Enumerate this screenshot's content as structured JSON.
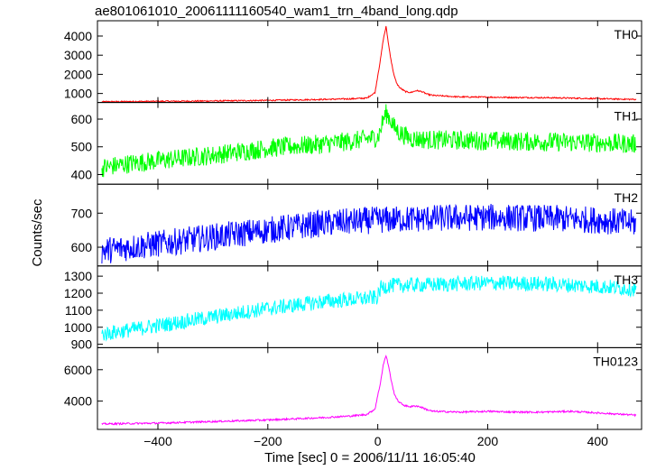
{
  "chart_data": {
    "type": "line",
    "title": "ae801061010_20061111160540_wam1_trn_4band_long.qdp",
    "xlabel": "Time [sec] 0 = 2006/11/11 16:05:40",
    "ylabel": "Counts/sec",
    "xlim": [
      -510,
      480
    ],
    "x_ticks": [
      -400,
      -200,
      0,
      200,
      400
    ],
    "panels": [
      {
        "name": "TH0",
        "color": "#ff0000",
        "ylim": [
          530,
          4800
        ],
        "y_ticks": [
          1000,
          2000,
          3000,
          4000
        ],
        "series": {
          "x": [
            -500,
            -400,
            -300,
            -200,
            -100,
            -50,
            -20,
            -5,
            5,
            10,
            15,
            20,
            25,
            30,
            35,
            40,
            50,
            60,
            70,
            80,
            90,
            100,
            150,
            200,
            250,
            300,
            350,
            400,
            450,
            470
          ],
          "y": [
            570,
            590,
            610,
            640,
            690,
            720,
            760,
            1050,
            2800,
            3800,
            4500,
            3500,
            2600,
            1900,
            1500,
            1300,
            1100,
            1050,
            1150,
            1100,
            960,
            900,
            820,
            810,
            790,
            780,
            760,
            730,
            700,
            690
          ],
          "noise": 35
        }
      },
      {
        "name": "TH1",
        "color": "#00ff00",
        "ylim": [
          365,
          660
        ],
        "y_ticks": [
          400,
          500,
          600
        ],
        "series": {
          "x": [
            -500,
            -450,
            -400,
            -300,
            -200,
            -100,
            -50,
            0,
            5,
            10,
            15,
            20,
            30,
            40,
            60,
            100,
            200,
            300,
            400,
            470
          ],
          "y": [
            425,
            440,
            450,
            470,
            495,
            510,
            520,
            535,
            560,
            600,
            620,
            610,
            570,
            550,
            530,
            525,
            522,
            518,
            515,
            510
          ],
          "noise": 35
        }
      },
      {
        "name": "TH2",
        "color": "#0000ff",
        "ylim": [
          545,
          785
        ],
        "y_ticks": [
          600,
          700
        ],
        "series": {
          "x": [
            -500,
            -450,
            -400,
            -300,
            -200,
            -100,
            0,
            100,
            200,
            300,
            400,
            470
          ],
          "y": [
            590,
            600,
            610,
            630,
            650,
            670,
            680,
            685,
            688,
            685,
            680,
            670
          ],
          "noise": 40
        }
      },
      {
        "name": "TH3",
        "color": "#00ffff",
        "ylim": [
          880,
          1360
        ],
        "y_ticks": [
          900,
          1000,
          1100,
          1200,
          1300
        ],
        "series": {
          "x": [
            -500,
            -450,
            -400,
            -300,
            -200,
            -100,
            0,
            5,
            20,
            100,
            200,
            300,
            400,
            470
          ],
          "y": [
            960,
            985,
            1010,
            1060,
            1110,
            1150,
            1175,
            1230,
            1245,
            1250,
            1260,
            1255,
            1240,
            1225
          ],
          "noise": 45
        }
      },
      {
        "name": "TH0123",
        "color": "#ff00ff",
        "ylim": [
          2200,
          7400
        ],
        "y_ticks": [
          4000,
          6000
        ],
        "series": {
          "x": [
            -500,
            -400,
            -300,
            -200,
            -100,
            -50,
            -20,
            -5,
            5,
            10,
            15,
            20,
            25,
            30,
            35,
            40,
            50,
            60,
            70,
            80,
            90,
            100,
            150,
            200,
            250,
            300,
            350,
            400,
            450,
            470
          ],
          "y": [
            2550,
            2600,
            2700,
            2800,
            2950,
            3050,
            3150,
            3500,
            5200,
            6300,
            6900,
            6200,
            5200,
            4500,
            4100,
            3900,
            3700,
            3650,
            3700,
            3600,
            3450,
            3350,
            3300,
            3350,
            3300,
            3300,
            3350,
            3250,
            3150,
            3100
          ],
          "noise": 55
        }
      }
    ]
  }
}
